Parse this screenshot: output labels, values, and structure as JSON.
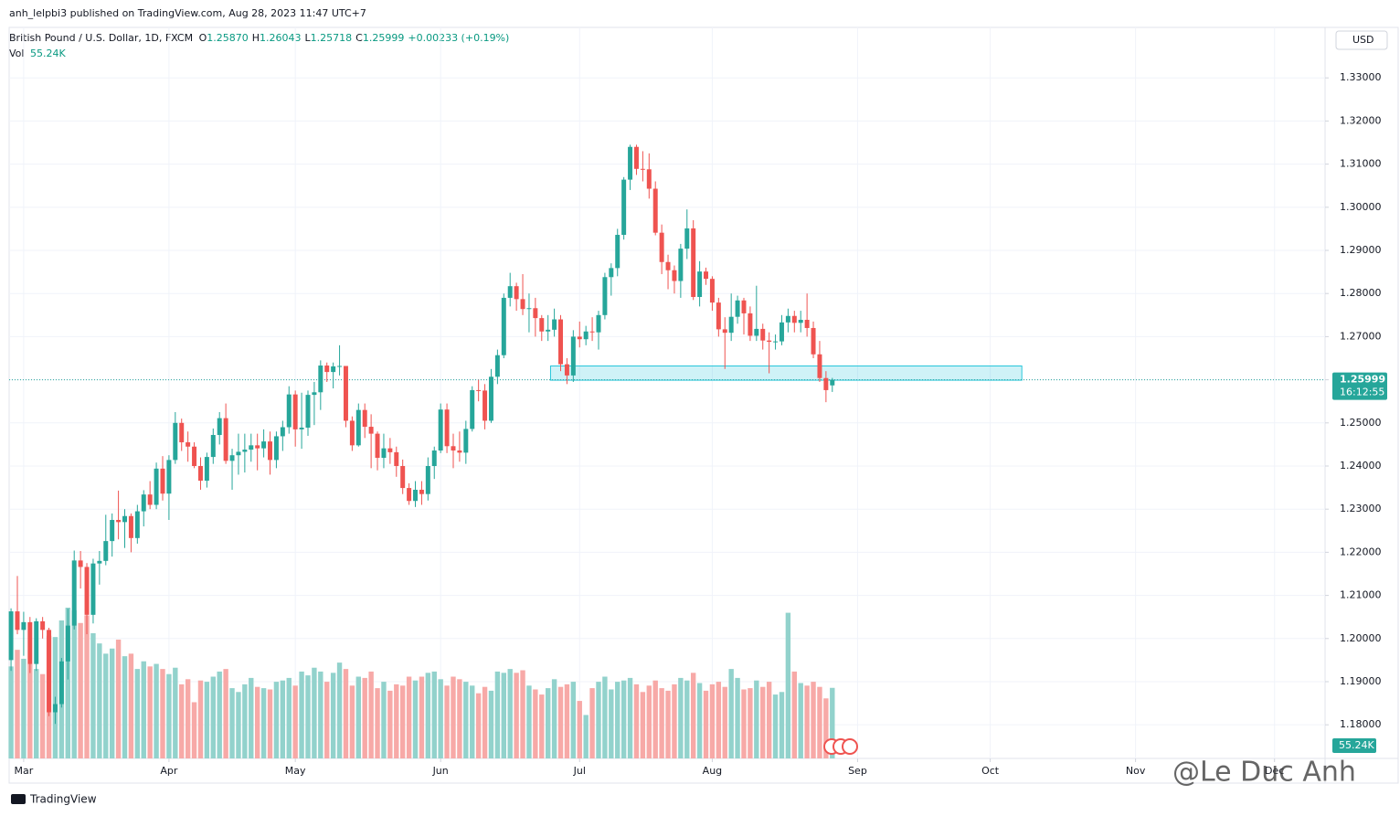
{
  "published": "anh_lelpbi3 published on TradingView.com, Aug 28, 2023 11:47 UTC+7",
  "brand": "TradingView",
  "chart_data": {
    "type": "candlestick",
    "symbol": "British Pound / U.S. Dollar, 1D, FXCM",
    "ohlc_labels": [
      {
        "key": "O",
        "value": "1.25870"
      },
      {
        "key": "H",
        "value": "1.26043"
      },
      {
        "key": "L",
        "value": "1.25718"
      },
      {
        "key": "C",
        "value": "1.25999"
      }
    ],
    "change": "+0.00233 (+0.19%)",
    "volume_key": "Vol",
    "volume_label": "55.24K",
    "currency": "USD",
    "watermark": "@Le Duc Anh",
    "up_color": "#26a69a",
    "down_color": "#ef5350",
    "up_volume_color": "#92d2cc",
    "down_volume_color": "#f7a9a7",
    "grid": true,
    "xlim": [
      -0.3,
      208
    ],
    "xticks": [
      {
        "value": 2,
        "label": "Mar"
      },
      {
        "value": 25,
        "label": "Apr"
      },
      {
        "value": 45,
        "label": "May"
      },
      {
        "value": 68,
        "label": "Jun"
      },
      {
        "value": 90,
        "label": "Jul"
      },
      {
        "value": 111,
        "label": "Aug"
      },
      {
        "value": 134,
        "label": "Sep"
      },
      {
        "value": 155,
        "label": "Oct"
      },
      {
        "value": 178,
        "label": "Nov"
      },
      {
        "value": 200,
        "label": "Dec"
      }
    ],
    "ylim": [
      1.1722,
      1.3417
    ],
    "yticks": [
      {
        "value": 1.18,
        "label": "1.18000"
      },
      {
        "value": 1.19,
        "label": "1.19000"
      },
      {
        "value": 1.2,
        "label": "1.20000"
      },
      {
        "value": 1.21,
        "label": "1.21000"
      },
      {
        "value": 1.22,
        "label": "1.22000"
      },
      {
        "value": 1.23,
        "label": "1.23000"
      },
      {
        "value": 1.24,
        "label": "1.24000"
      },
      {
        "value": 1.25,
        "label": "1.25000"
      },
      {
        "value": 1.26,
        "label": "1.26000"
      },
      {
        "value": 1.27,
        "label": "1.27000"
      },
      {
        "value": 1.28,
        "label": "1.28000"
      },
      {
        "value": 1.29,
        "label": "1.29000"
      },
      {
        "value": 1.3,
        "label": "1.30000"
      },
      {
        "value": 1.31,
        "label": "1.31000"
      },
      {
        "value": 1.32,
        "label": "1.32000"
      },
      {
        "value": 1.33,
        "label": "1.33000"
      }
    ],
    "last_price": {
      "value": 1.25999,
      "label": "1.25999"
    },
    "countdown": "16:12:55",
    "zone": {
      "x": [
        85.4,
        160
      ],
      "y": [
        1.2599,
        1.2632
      ],
      "color": "#26c6da"
    },
    "open": [
      1.195,
      1.2063,
      1.202,
      1.2038,
      1.1941,
      1.204,
      1.202,
      1.1829,
      1.1848,
      1.1947,
      1.203,
      1.2181,
      1.2166,
      1.2055,
      1.2174,
      1.218,
      1.2226,
      1.2275,
      1.227,
      1.2284,
      1.2233,
      1.2295,
      1.2334,
      1.231,
      1.2394,
      1.2336,
      1.2414,
      1.25,
      1.2455,
      1.2445,
      1.24,
      1.2366,
      1.2421,
      1.2472,
      1.2511,
      1.2412,
      1.2425,
      1.2433,
      1.2438,
      1.2448,
      1.2441,
      1.2457,
      1.2414,
      1.2469,
      1.249,
      1.2566,
      1.2485,
      1.2489,
      1.2565,
      1.2571,
      1.2633,
      1.2618,
      1.2631,
      1.2632,
      1.2505,
      1.2448,
      1.253,
      1.2491,
      1.2475,
      1.2419,
      1.2441,
      1.2432,
      1.24,
      1.2349,
      1.2319,
      1.2345,
      1.2335,
      1.24,
      1.2436,
      1.2531,
      1.2446,
      1.2436,
      1.2431,
      1.2486,
      1.2576,
      1.2575,
      1.2505,
      1.2607,
      1.2657,
      1.279,
      1.2817,
      1.2787,
      1.2764,
      1.2766,
      1.2743,
      1.2712,
      1.2716,
      1.274,
      1.2636,
      1.261,
      1.27,
      1.2694,
      1.2712,
      1.271,
      1.275,
      1.2838,
      1.2859,
      1.2936,
      1.3064,
      1.314,
      1.3089,
      1.3088,
      1.3043,
      1.2941,
      1.2873,
      1.2854,
      1.2829,
      1.2904,
      1.2951,
      1.2792,
      1.2851,
      1.2834,
      1.2779,
      1.2717,
      1.2709,
      1.2746,
      1.2784,
      1.2754,
      1.2702,
      1.2718,
      1.2691,
      1.2688,
      1.2689,
      1.2733,
      1.2748,
      1.2732,
      1.2739,
      1.272,
      1.2659,
      1.2604,
      1.2587
    ],
    "high": [
      1.207,
      1.2145,
      1.2062,
      1.205,
      1.2047,
      1.205,
      1.2025,
      1.1865,
      1.1955,
      1.2069,
      1.2204,
      1.2203,
      1.2175,
      1.2185,
      1.2203,
      1.2287,
      1.229,
      1.2343,
      1.23,
      1.229,
      1.231,
      1.2344,
      1.2365,
      1.2408,
      1.2423,
      1.2425,
      1.2525,
      1.251,
      1.248,
      1.2455,
      1.242,
      1.2431,
      1.2487,
      1.2525,
      1.2545,
      1.244,
      1.2475,
      1.2475,
      1.2475,
      1.2475,
      1.2485,
      1.248,
      1.248,
      1.2505,
      1.2585,
      1.2575,
      1.257,
      1.2575,
      1.2595,
      1.2645,
      1.264,
      1.264,
      1.268,
      1.263,
      1.2515,
      1.2545,
      1.2545,
      1.252,
      1.248,
      1.2475,
      1.2465,
      1.2445,
      1.2415,
      1.236,
      1.2365,
      1.2365,
      1.242,
      1.2445,
      1.2545,
      1.2545,
      1.2475,
      1.248,
      1.2505,
      1.2585,
      1.26,
      1.259,
      1.2625,
      1.267,
      1.28,
      1.2848,
      1.2825,
      1.2845,
      1.28,
      1.279,
      1.275,
      1.275,
      1.2765,
      1.275,
      1.265,
      1.2715,
      1.2735,
      1.2725,
      1.2745,
      1.276,
      1.2848,
      1.287,
      1.295,
      1.307,
      1.3145,
      1.3145,
      1.313,
      1.3125,
      1.306,
      1.296,
      1.289,
      1.2865,
      1.2915,
      1.2995,
      1.297,
      1.2875,
      1.286,
      1.284,
      1.279,
      1.2745,
      1.28,
      1.2795,
      1.279,
      1.277,
      1.2818,
      1.273,
      1.271,
      1.2705,
      1.275,
      1.2765,
      1.276,
      1.276,
      1.28,
      1.2735,
      1.269,
      1.262,
      1.26043
    ],
    "low": [
      1.1925,
      1.201,
      1.196,
      1.192,
      1.1925,
      1.2,
      1.182,
      1.1802,
      1.184,
      1.1905,
      1.2021,
      1.2116,
      1.201,
      1.2035,
      1.2125,
      1.217,
      1.219,
      1.223,
      1.221,
      1.22,
      1.222,
      1.226,
      1.23,
      1.23,
      1.232,
      1.2275,
      1.2405,
      1.2435,
      1.241,
      1.2395,
      1.2345,
      1.235,
      1.2405,
      1.245,
      1.2405,
      1.2345,
      1.238,
      1.2385,
      1.241,
      1.239,
      1.242,
      1.238,
      1.2395,
      1.2435,
      1.2475,
      1.2445,
      1.244,
      1.247,
      1.2495,
      1.253,
      1.2595,
      1.258,
      1.261,
      1.249,
      1.2435,
      1.2445,
      1.2465,
      1.2395,
      1.239,
      1.2395,
      1.2405,
      1.2375,
      1.2335,
      1.231,
      1.2305,
      1.231,
      1.232,
      1.237,
      1.243,
      1.243,
      1.2395,
      1.241,
      1.2405,
      1.248,
      1.255,
      1.2485,
      1.25,
      1.259,
      1.265,
      1.277,
      1.276,
      1.275,
      1.271,
      1.27,
      1.269,
      1.269,
      1.27,
      1.262,
      1.259,
      1.2595,
      1.2675,
      1.268,
      1.269,
      1.267,
      1.274,
      1.2795,
      1.284,
      1.2925,
      1.304,
      1.3075,
      1.306,
      1.302,
      1.2935,
      1.2845,
      1.281,
      1.28,
      1.279,
      1.288,
      1.2785,
      1.277,
      1.282,
      1.276,
      1.27,
      1.2625,
      1.269,
      1.273,
      1.2705,
      1.269,
      1.269,
      1.267,
      1.2615,
      1.267,
      1.268,
      1.271,
      1.271,
      1.271,
      1.27,
      1.265,
      1.2595,
      1.2548,
      1.25718
    ],
    "close": [
      1.2063,
      1.202,
      1.2038,
      1.1941,
      1.204,
      1.202,
      1.1829,
      1.1848,
      1.1947,
      1.203,
      1.2181,
      1.2166,
      1.2055,
      1.2174,
      1.218,
      1.2226,
      1.2275,
      1.227,
      1.2284,
      1.2233,
      1.2295,
      1.2334,
      1.231,
      1.2394,
      1.2336,
      1.2414,
      1.25,
      1.2455,
      1.2445,
      1.24,
      1.2366,
      1.2421,
      1.2472,
      1.2511,
      1.2412,
      1.2425,
      1.2433,
      1.2438,
      1.2448,
      1.2441,
      1.2457,
      1.2414,
      1.2469,
      1.249,
      1.2566,
      1.2485,
      1.2489,
      1.2565,
      1.2571,
      1.2633,
      1.2618,
      1.2631,
      1.2632,
      1.2505,
      1.2448,
      1.253,
      1.2491,
      1.2475,
      1.2419,
      1.2441,
      1.2432,
      1.24,
      1.2349,
      1.2319,
      1.2345,
      1.2335,
      1.24,
      1.2436,
      1.2531,
      1.2446,
      1.2436,
      1.2431,
      1.2486,
      1.2576,
      1.2575,
      1.2505,
      1.2607,
      1.2657,
      1.279,
      1.2817,
      1.2787,
      1.2764,
      1.2766,
      1.2743,
      1.2712,
      1.2716,
      1.274,
      1.2636,
      1.261,
      1.27,
      1.2694,
      1.2712,
      1.271,
      1.275,
      1.2838,
      1.2859,
      1.2936,
      1.3064,
      1.314,
      1.3089,
      1.3088,
      1.3043,
      1.2941,
      1.2873,
      1.2854,
      1.2829,
      1.2904,
      1.2951,
      1.2792,
      1.2851,
      1.2834,
      1.2779,
      1.2717,
      1.2709,
      1.2746,
      1.2784,
      1.2754,
      1.2702,
      1.2718,
      1.2691,
      1.2688,
      1.2689,
      1.2733,
      1.2748,
      1.2732,
      1.2739,
      1.272,
      1.2659,
      1.2604,
      1.2576,
      1.25999
    ],
    "volume": [
      72000,
      85000,
      78000,
      74000,
      70000,
      66000,
      96000,
      95000,
      108000,
      118000,
      116000,
      106000,
      112000,
      98000,
      90000,
      82000,
      86000,
      93000,
      80000,
      82000,
      70000,
      76000,
      72000,
      74000,
      70000,
      66000,
      71000,
      58000,
      62000,
      44000,
      61000,
      60000,
      64000,
      68000,
      70000,
      55000,
      52000,
      58000,
      63000,
      56000,
      55000,
      54000,
      60000,
      61000,
      63000,
      57000,
      68000,
      65000,
      71000,
      68000,
      60000,
      67000,
      75000,
      70000,
      57000,
      64000,
      63000,
      68000,
      55000,
      60000,
      53000,
      58000,
      57000,
      64000,
      61000,
      64000,
      67000,
      68000,
      62000,
      57000,
      64000,
      62000,
      60000,
      57000,
      51000,
      56000,
      53000,
      68000,
      67000,
      70000,
      67000,
      69000,
      57000,
      54000,
      50000,
      55000,
      62000,
      56000,
      58000,
      60000,
      45000,
      34000,
      55000,
      60000,
      64000,
      54000,
      60000,
      61000,
      63000,
      58000,
      52000,
      57000,
      61000,
      55000,
      53000,
      58000,
      63000,
      61000,
      67000,
      59000,
      53000,
      58000,
      60000,
      56000,
      70000,
      63000,
      54000,
      55000,
      61000,
      56000,
      60000,
      50000,
      52000,
      114000,
      68000,
      59000,
      57000,
      60000,
      56000,
      47000,
      55240
    ]
  }
}
